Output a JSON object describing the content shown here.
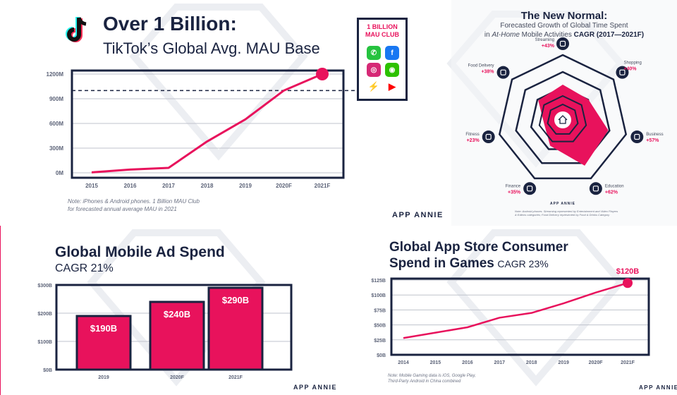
{
  "colors": {
    "navy": "#1a2340",
    "pink": "#e8125c",
    "grid": "#bfc3cc",
    "light_bg": "#f4f5f8"
  },
  "brand": "APP ANNIE",
  "tiktok": {
    "icon": "tiktok-icon",
    "title": "Over 1 Billion:",
    "subtitle": "TikTok’s Global Avg. MAU Base",
    "note_line1": "Note: iPhones & Android phones. 1 Billion MAU Club",
    "note_line2": "for forecasted annual average MAU in 2021",
    "club": {
      "line1": "1 BILLION",
      "line2": "MAU CLUB",
      "apps": [
        {
          "icon": "whatsapp-icon",
          "glyph": "✆",
          "color": "#25c33f"
        },
        {
          "icon": "facebook-icon",
          "glyph": "f",
          "color": "#1877f2"
        },
        {
          "icon": "instagram-icon",
          "glyph": "◎",
          "color": "#d62976"
        },
        {
          "icon": "wechat-icon",
          "glyph": "◉",
          "color": "#2dc100"
        },
        {
          "icon": "messenger-icon",
          "glyph": "⚡",
          "color": "#0a7cff"
        },
        {
          "icon": "youtube-icon",
          "glyph": "▶",
          "color": "#ff0000"
        }
      ]
    }
  },
  "radar": {
    "title": "The New Normal:",
    "sub1": "Forecasted Growth of Global Time Spent",
    "sub2_italic": "At-Home",
    "sub2_prefix": "in ",
    "sub2_suffix": " Mobile Activities ",
    "sub2_bold": "CAGR (2017—2021F)",
    "center_icon": "home-icon",
    "note_line1": "Note: Android phones. Streaming represented by Entertainment and Video Players",
    "note_line2": "& Editors categories; Food Delivery represented by Food & Drinks Category"
  },
  "ads": {
    "title": "Global Mobile Ad Spend",
    "subtitle": "CAGR 21%"
  },
  "games": {
    "title_line1": "Global App Store Consumer",
    "title_line2": "Spend in Games",
    "title_cagr": "CAGR 23%",
    "callout": "$120B",
    "note_line1": "Note: Mobile Gaming data is iOS, Google Play,",
    "note_line2": "Third-Party Android in China combined"
  },
  "chart_data": [
    {
      "id": "tiktok_mau",
      "type": "line",
      "title": "Over 1 Billion: TikTok’s Global Avg. MAU Base",
      "categories": [
        "2015",
        "2016",
        "2017",
        "2018",
        "2019",
        "2020F",
        "2021F"
      ],
      "values": [
        5,
        40,
        60,
        380,
        650,
        1000,
        1200
      ],
      "unit": "M",
      "y_ticks": [
        "0M",
        "300M",
        "600M",
        "900M",
        "1200M"
      ],
      "ylim": [
        0,
        1200
      ],
      "reference_line": 1000,
      "highlight": "2021F"
    },
    {
      "id": "radar_cagr",
      "type": "radar",
      "title": "The New Normal",
      "categories": [
        {
          "name": "Streaming",
          "value": 43,
          "label": "+43%",
          "icon": "streaming-icon"
        },
        {
          "name": "Shopping",
          "value": 40,
          "label": "+40%",
          "icon": "shopping-cart-icon"
        },
        {
          "name": "Business",
          "value": 57,
          "label": "+57%",
          "icon": "business-icon"
        },
        {
          "name": "Education",
          "value": 62,
          "label": "+62%",
          "icon": "education-icon"
        },
        {
          "name": "Finance",
          "value": 35,
          "label": "+35%",
          "icon": "finance-icon"
        },
        {
          "name": "Fitness",
          "value": 23,
          "label": "+23%",
          "icon": "fitness-icon"
        },
        {
          "name": "Food Delivery",
          "value": 38,
          "label": "+38%",
          "icon": "food-delivery-icon"
        }
      ],
      "rmax": 80
    },
    {
      "id": "ad_spend",
      "type": "bar",
      "title": "Global Mobile Ad Spend",
      "categories": [
        "2019",
        "2020F",
        "2021F"
      ],
      "values": [
        190,
        240,
        290
      ],
      "labels": [
        "$190B",
        "$240B",
        "$290B"
      ],
      "y_ticks": [
        "$0B",
        "$100B",
        "$200B",
        "$300B"
      ],
      "ylim": [
        0,
        300
      ]
    },
    {
      "id": "games_spend",
      "type": "line",
      "title": "Global App Store Consumer Spend in Games",
      "categories": [
        "2014",
        "2015",
        "2016",
        "2017",
        "2018",
        "2019",
        "2020F",
        "2021F"
      ],
      "values": [
        28,
        37,
        46,
        62,
        70,
        86,
        104,
        120
      ],
      "y_ticks": [
        "$0B",
        "$25B",
        "$50B",
        "$75B",
        "$100B",
        "$125B"
      ],
      "ylim": [
        0,
        125
      ],
      "highlight": "2021F"
    }
  ]
}
